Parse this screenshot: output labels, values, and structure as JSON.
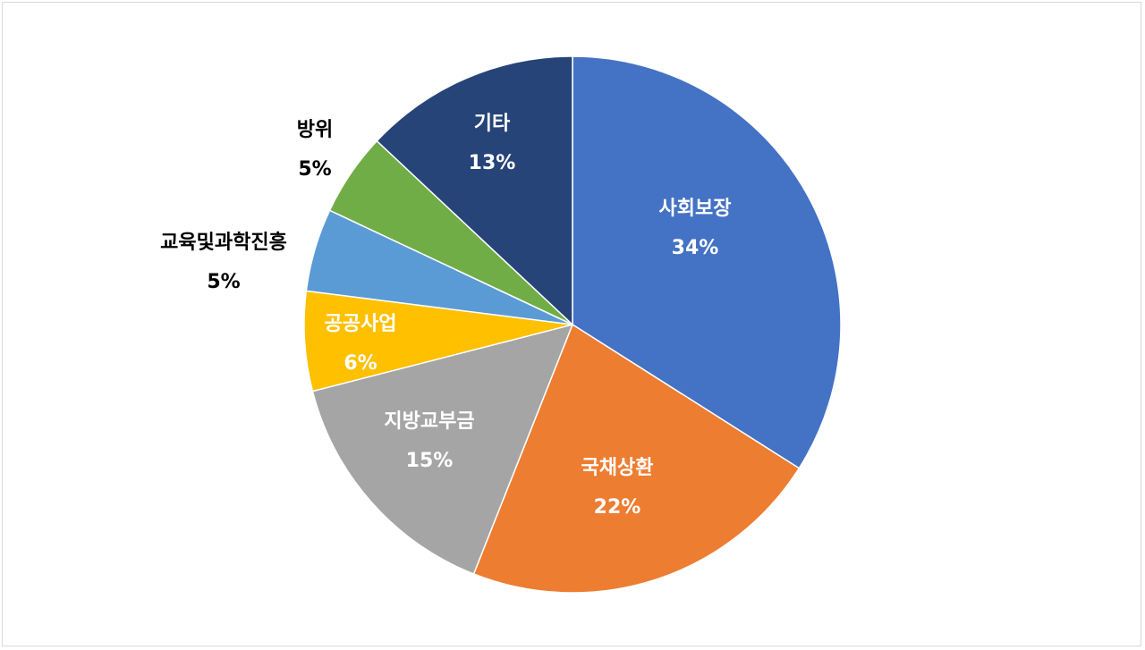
{
  "chart_data": {
    "type": "pie",
    "start_angle": "12 o'clock",
    "direction": "clockwise",
    "legend": "none",
    "slices": [
      {
        "label": "사회보장",
        "value": 34,
        "value_label": "34%",
        "color": "#4472C4",
        "label_color": "#FFFFFF"
      },
      {
        "label": "국채상환",
        "value": 22,
        "value_label": "22%",
        "color": "#ED7D31",
        "label_color": "#FFFFFF"
      },
      {
        "label": "지방교부금",
        "value": 15,
        "value_label": "15%",
        "color": "#A5A5A5",
        "label_color": "#FFFFFF"
      },
      {
        "label": "공공사업",
        "value": 6,
        "value_label": "6%",
        "color": "#FFC000",
        "label_color": "#FFFFFF"
      },
      {
        "label": "교육및과학진흥",
        "value": 5,
        "value_label": "5%",
        "color": "#5B9BD5",
        "label_color": "#000000"
      },
      {
        "label": "방위",
        "value": 5,
        "value_label": "5%",
        "color": "#70AD47",
        "label_color": "#000000"
      },
      {
        "label": "기타",
        "value": 13,
        "value_label": "13%",
        "color": "#264478",
        "label_color": "#FFFFFF"
      }
    ]
  }
}
